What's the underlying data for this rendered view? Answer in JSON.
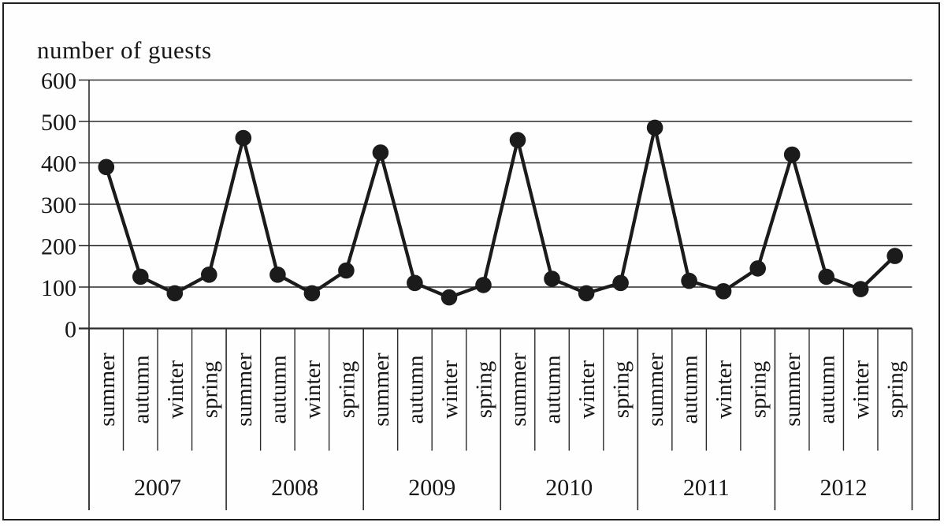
{
  "chart_data": {
    "type": "line",
    "title": "number of guests",
    "years": [
      "2007",
      "2008",
      "2009",
      "2010",
      "2011",
      "2012"
    ],
    "seasons_per_year": [
      "summer",
      "autumn",
      "winter",
      "spring"
    ],
    "x_season_labels": [
      "summer",
      "autumn",
      "winter",
      "spring",
      "summer",
      "autumn",
      "winter",
      "spring",
      "summer",
      "autumn",
      "winter",
      "spring",
      "summer",
      "autumn",
      "winter",
      "spring",
      "summer",
      "autumn",
      "winter",
      "spring",
      "summer",
      "autumn",
      "winter",
      "spring"
    ],
    "y_ticks": [
      "600",
      "500",
      "400",
      "300",
      "200",
      "100",
      "0"
    ],
    "ylim": [
      0,
      600
    ],
    "grid": true,
    "legend_position": "none",
    "marker": "filled-circle",
    "series": [
      {
        "name": "number of guests",
        "values": [
          390,
          125,
          85,
          130,
          460,
          130,
          85,
          140,
          425,
          110,
          75,
          105,
          455,
          120,
          85,
          110,
          485,
          115,
          90,
          145,
          420,
          125,
          95,
          175
        ]
      }
    ],
    "colors": {
      "line": "#1b1b1b",
      "marker": "#1b1b1b",
      "grid": "#2b2b2b",
      "text": "#161616",
      "background": "#ffffff",
      "border": "#1f1f1f"
    }
  }
}
